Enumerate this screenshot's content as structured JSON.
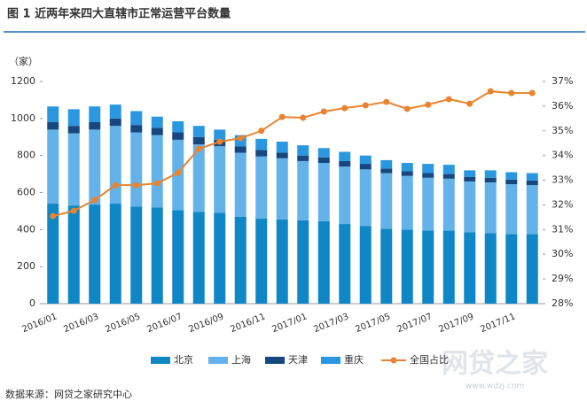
{
  "chart_data": {
    "type": "bar",
    "title": "图 1   近两年来四大直辖市正常运营平台数量",
    "y_label": "（家）",
    "source": "数据来源：网贷之家研究中心",
    "watermark": "网贷之家",
    "watermark_url": "www.wdzj.com",
    "stacked": true,
    "categories": [
      "2016/01",
      null,
      "2016/03",
      null,
      "2016/05",
      null,
      "2016/07",
      null,
      "2016/09",
      null,
      "2016/11",
      null,
      "2017/01",
      null,
      "2017/03",
      null,
      "2017/05",
      null,
      "2017/07",
      null,
      "2017/09",
      null,
      "2017/11",
      null
    ],
    "series": [
      {
        "name": "北京",
        "color": "#0f86c6",
        "values": [
          540,
          530,
          535,
          540,
          525,
          520,
          505,
          495,
          490,
          470,
          460,
          455,
          450,
          445,
          430,
          420,
          405,
          400,
          395,
          395,
          385,
          380,
          375,
          375
        ]
      },
      {
        "name": "上海",
        "color": "#63b3ea",
        "values": [
          400,
          390,
          405,
          420,
          400,
          390,
          380,
          365,
          360,
          345,
          335,
          330,
          320,
          315,
          310,
          305,
          300,
          290,
          285,
          280,
          275,
          275,
          270,
          265
        ]
      },
      {
        "name": "天津",
        "color": "#17477f",
        "values": [
          40,
          40,
          40,
          40,
          40,
          40,
          40,
          40,
          35,
          35,
          35,
          30,
          30,
          30,
          30,
          30,
          25,
          25,
          25,
          25,
          25,
          25,
          25,
          25
        ]
      },
      {
        "name": "重庆",
        "color": "#2a97e0",
        "values": [
          85,
          90,
          85,
          75,
          75,
          60,
          60,
          60,
          55,
          60,
          60,
          60,
          55,
          50,
          50,
          45,
          45,
          45,
          50,
          50,
          35,
          40,
          40,
          40
        ]
      },
      {
        "name": "全国占比",
        "type": "line",
        "axis": "y2",
        "color": "#e8842f",
        "values": [
          31.55,
          31.76,
          32.2,
          32.8,
          32.8,
          32.87,
          33.3,
          34.27,
          34.56,
          34.7,
          35.0,
          35.56,
          35.53,
          35.78,
          35.92,
          36.03,
          36.17,
          35.89,
          36.06,
          36.28,
          36.1,
          36.6,
          36.53,
          36.53
        ]
      }
    ],
    "ylim": [
      0,
      1200
    ],
    "yticks": [
      0,
      200,
      400,
      600,
      800,
      1000,
      1200
    ],
    "y2lim": [
      28,
      37
    ],
    "y2ticks": [
      {
        "value": 28,
        "label": "28%"
      },
      {
        "value": 29,
        "label": "29%"
      },
      {
        "value": 30,
        "label": "30%"
      },
      {
        "value": 31,
        "label": "31%"
      },
      {
        "value": 32,
        "label": "32%"
      },
      {
        "value": 33,
        "label": "33%"
      },
      {
        "value": 34,
        "label": "34%"
      },
      {
        "value": 35,
        "label": "35%"
      },
      {
        "value": 36,
        "label": "36%"
      },
      {
        "value": 37,
        "label": "37%"
      }
    ],
    "grid": false,
    "legend": "bottom"
  }
}
